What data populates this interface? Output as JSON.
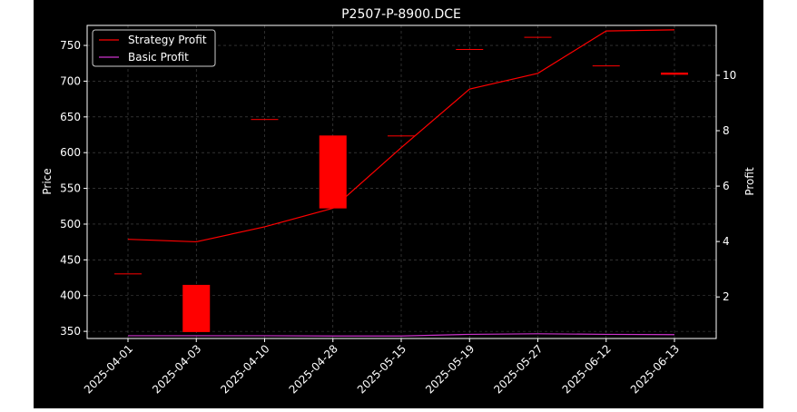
{
  "chart_data": {
    "type": "candlestick",
    "title": "P2507-P-8900.DCE",
    "ylabel_left": "Price",
    "ylabel_right": "Profit",
    "xlabel": "",
    "ylim_left": [
      340,
      778
    ],
    "ylim_right": [
      0.5,
      11.8
    ],
    "yticks_left": [
      350,
      400,
      450,
      500,
      550,
      600,
      650,
      700,
      750
    ],
    "yticks_right": [
      2,
      4,
      6,
      8,
      10
    ],
    "grid": true,
    "legend_position": "top-left",
    "categories": [
      "2025-04-01",
      "2025-04-03",
      "2025-04-10",
      "2025-04-28",
      "2025-05-15",
      "2025-05-19",
      "2025-05-27",
      "2025-06-12",
      "2025-06-13"
    ],
    "candles": [
      {
        "open": 431,
        "close": 431
      },
      {
        "open": 415,
        "close": 349
      },
      {
        "open": 647,
        "close": 647
      },
      {
        "open": 624,
        "close": 522
      },
      {
        "open": 624,
        "close": 624
      },
      {
        "open": 745,
        "close": 745
      },
      {
        "open": 762,
        "close": 762
      },
      {
        "open": 722,
        "close": 722
      },
      {
        "open": 712,
        "close": 709
      }
    ],
    "series": [
      {
        "name": "Strategy Profit",
        "axis": "right",
        "color": "#ff0000",
        "values": [
          4.08,
          3.99,
          4.53,
          5.2,
          7.39,
          9.5,
          10.07,
          11.6,
          11.64
        ]
      },
      {
        "name": "Basic Profit",
        "axis": "right",
        "color": "#cc33cc",
        "values": [
          0.6,
          0.6,
          0.6,
          0.59,
          0.59,
          0.65,
          0.67,
          0.65,
          0.64
        ]
      }
    ],
    "colors": {
      "background": "#000000",
      "axes": "#ffffff",
      "candle": "#ff0000",
      "grid": "#808080"
    }
  }
}
